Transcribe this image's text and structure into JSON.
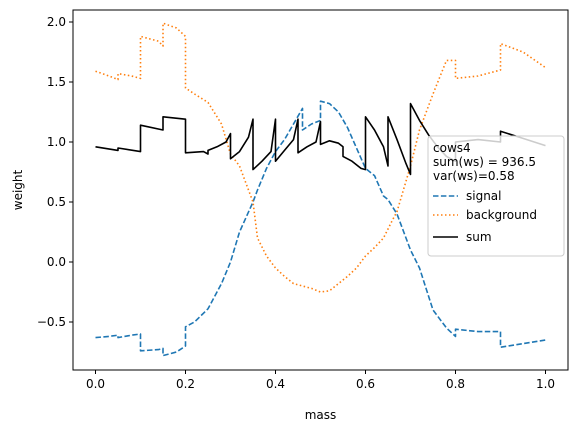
{
  "chart_data": {
    "type": "line",
    "title": "",
    "xlabel": "mass",
    "ylabel": "weight",
    "xlim": [
      -0.05,
      1.05
    ],
    "ylim": [
      -0.9,
      2.1
    ],
    "grid": false,
    "legend_placement": "center-right",
    "xticks": [
      0.0,
      0.2,
      0.4,
      0.6,
      0.8,
      1.0
    ],
    "xtick_labels": [
      "0.0",
      "0.2",
      "0.4",
      "0.6",
      "0.8",
      "1.0"
    ],
    "yticks": [
      -0.5,
      0.0,
      0.5,
      1.0,
      1.5,
      2.0
    ],
    "ytick_labels": [
      "−0.5",
      "0.0",
      "0.5",
      "1.0",
      "1.5",
      "2.0"
    ],
    "legend": {
      "title_lines": [
        "cows4",
        "sum(ws) = 936.5",
        "var(ws)=0.58"
      ],
      "entries": [
        "signal",
        "background",
        "sum"
      ]
    },
    "series": [
      {
        "name": "signal",
        "color": "#1f77b4",
        "style": "dashed",
        "points": [
          [
            0.0,
            -0.63
          ],
          [
            0.03,
            -0.62
          ],
          [
            0.05,
            -0.61
          ],
          [
            0.05,
            -0.63
          ],
          [
            0.08,
            -0.61
          ],
          [
            0.1,
            -0.6
          ],
          [
            0.1,
            -0.74
          ],
          [
            0.14,
            -0.73
          ],
          [
            0.15,
            -0.72
          ],
          [
            0.15,
            -0.78
          ],
          [
            0.18,
            -0.75
          ],
          [
            0.2,
            -0.7
          ],
          [
            0.2,
            -0.54
          ],
          [
            0.22,
            -0.5
          ],
          [
            0.25,
            -0.39
          ],
          [
            0.28,
            -0.18
          ],
          [
            0.3,
            0.0
          ],
          [
            0.32,
            0.25
          ],
          [
            0.35,
            0.5
          ],
          [
            0.36,
            0.6
          ],
          [
            0.38,
            0.78
          ],
          [
            0.4,
            0.92
          ],
          [
            0.42,
            1.02
          ],
          [
            0.44,
            1.15
          ],
          [
            0.46,
            1.28
          ],
          [
            0.46,
            1.1
          ],
          [
            0.48,
            1.15
          ],
          [
            0.5,
            1.18
          ],
          [
            0.5,
            1.34
          ],
          [
            0.52,
            1.32
          ],
          [
            0.54,
            1.25
          ],
          [
            0.56,
            1.12
          ],
          [
            0.58,
            0.95
          ],
          [
            0.6,
            0.78
          ],
          [
            0.62,
            0.72
          ],
          [
            0.64,
            0.55
          ],
          [
            0.65,
            0.52
          ],
          [
            0.67,
            0.4
          ],
          [
            0.7,
            0.1
          ],
          [
            0.72,
            -0.05
          ],
          [
            0.75,
            -0.4
          ],
          [
            0.78,
            -0.55
          ],
          [
            0.8,
            -0.62
          ],
          [
            0.8,
            -0.56
          ],
          [
            0.85,
            -0.58
          ],
          [
            0.9,
            -0.58
          ],
          [
            0.9,
            -0.71
          ],
          [
            0.95,
            -0.68
          ],
          [
            1.0,
            -0.65
          ]
        ]
      },
      {
        "name": "background",
        "color": "#ff7f0e",
        "style": "dotted",
        "points": [
          [
            0.0,
            1.59
          ],
          [
            0.03,
            1.55
          ],
          [
            0.05,
            1.52
          ],
          [
            0.05,
            1.57
          ],
          [
            0.08,
            1.55
          ],
          [
            0.1,
            1.53
          ],
          [
            0.1,
            1.88
          ],
          [
            0.14,
            1.84
          ],
          [
            0.15,
            1.8
          ],
          [
            0.15,
            1.99
          ],
          [
            0.18,
            1.95
          ],
          [
            0.2,
            1.88
          ],
          [
            0.2,
            1.45
          ],
          [
            0.22,
            1.4
          ],
          [
            0.25,
            1.33
          ],
          [
            0.28,
            1.15
          ],
          [
            0.3,
            0.9
          ],
          [
            0.32,
            0.8
          ],
          [
            0.35,
            0.5
          ],
          [
            0.36,
            0.2
          ],
          [
            0.38,
            0.05
          ],
          [
            0.4,
            -0.05
          ],
          [
            0.42,
            -0.12
          ],
          [
            0.44,
            -0.18
          ],
          [
            0.46,
            -0.2
          ],
          [
            0.48,
            -0.22
          ],
          [
            0.5,
            -0.25
          ],
          [
            0.52,
            -0.24
          ],
          [
            0.54,
            -0.18
          ],
          [
            0.56,
            -0.12
          ],
          [
            0.58,
            -0.05
          ],
          [
            0.6,
            0.05
          ],
          [
            0.62,
            0.12
          ],
          [
            0.64,
            0.2
          ],
          [
            0.66,
            0.35
          ],
          [
            0.67,
            0.42
          ],
          [
            0.7,
            0.8
          ],
          [
            0.72,
            1.1
          ],
          [
            0.75,
            1.4
          ],
          [
            0.78,
            1.68
          ],
          [
            0.8,
            1.68
          ],
          [
            0.8,
            1.53
          ],
          [
            0.85,
            1.55
          ],
          [
            0.9,
            1.6
          ],
          [
            0.9,
            1.82
          ],
          [
            0.95,
            1.75
          ],
          [
            1.0,
            1.62
          ]
        ]
      },
      {
        "name": "sum",
        "color": "#000000",
        "style": "solid",
        "points": [
          [
            0.0,
            0.96
          ],
          [
            0.05,
            0.93
          ],
          [
            0.05,
            0.95
          ],
          [
            0.1,
            0.92
          ],
          [
            0.1,
            1.14
          ],
          [
            0.15,
            1.1
          ],
          [
            0.15,
            1.21
          ],
          [
            0.2,
            1.19
          ],
          [
            0.2,
            0.91
          ],
          [
            0.24,
            0.92
          ],
          [
            0.25,
            0.9
          ],
          [
            0.25,
            0.93
          ],
          [
            0.27,
            0.96
          ],
          [
            0.29,
            1.0
          ],
          [
            0.3,
            1.07
          ],
          [
            0.3,
            0.86
          ],
          [
            0.32,
            0.92
          ],
          [
            0.34,
            1.04
          ],
          [
            0.35,
            1.19
          ],
          [
            0.35,
            0.77
          ],
          [
            0.37,
            0.84
          ],
          [
            0.39,
            0.92
          ],
          [
            0.4,
            1.19
          ],
          [
            0.4,
            0.84
          ],
          [
            0.42,
            0.93
          ],
          [
            0.44,
            1.02
          ],
          [
            0.45,
            1.19
          ],
          [
            0.45,
            0.91
          ],
          [
            0.47,
            0.96
          ],
          [
            0.49,
            1.0
          ],
          [
            0.5,
            1.17
          ],
          [
            0.5,
            0.98
          ],
          [
            0.52,
            1.01
          ],
          [
            0.54,
            0.99
          ],
          [
            0.55,
            0.96
          ],
          [
            0.55,
            0.88
          ],
          [
            0.57,
            0.84
          ],
          [
            0.59,
            0.78
          ],
          [
            0.6,
            0.77
          ],
          [
            0.6,
            1.21
          ],
          [
            0.62,
            1.1
          ],
          [
            0.64,
            0.96
          ],
          [
            0.65,
            0.8
          ],
          [
            0.65,
            1.21
          ],
          [
            0.67,
            1.02
          ],
          [
            0.69,
            0.82
          ],
          [
            0.7,
            0.73
          ],
          [
            0.7,
            1.32
          ],
          [
            0.72,
            1.18
          ],
          [
            0.74,
            1.06
          ],
          [
            0.76,
            0.96
          ],
          [
            0.78,
            0.88
          ],
          [
            0.8,
            0.84
          ],
          [
            0.8,
            1.0
          ],
          [
            0.85,
            1.02
          ],
          [
            0.9,
            1.0
          ],
          [
            0.9,
            1.09
          ],
          [
            0.95,
            1.03
          ],
          [
            1.0,
            0.97
          ]
        ]
      }
    ]
  }
}
